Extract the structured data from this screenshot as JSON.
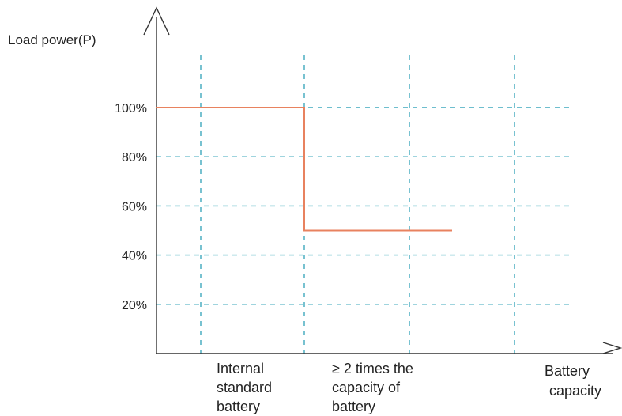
{
  "chart_data": {
    "type": "line",
    "ylabel": "Load power(P)",
    "xlabel": [
      "Battery",
      "capacity"
    ],
    "yticks": [
      {
        "value": 20,
        "label": "20%"
      },
      {
        "value": 40,
        "label": "40%"
      },
      {
        "value": 60,
        "label": "60%"
      },
      {
        "value": 80,
        "label": "80%"
      },
      {
        "value": 100,
        "label": "100%"
      }
    ],
    "categories": [
      {
        "lines": [
          "Internal",
          "standard",
          "battery"
        ]
      },
      {
        "lines": [
          "≥ 2 times the",
          "capacity of",
          "battery"
        ]
      }
    ],
    "series": [
      {
        "points": [
          {
            "x": 0,
            "y": 100
          },
          {
            "x": 1,
            "y": 100
          },
          {
            "x": 1,
            "y": 50
          },
          {
            "x": 2,
            "y": 50
          }
        ]
      }
    ],
    "grid": true,
    "colors": {
      "line": "#e8825f",
      "grid": "#3fa9bd",
      "axis": "#333333"
    }
  }
}
